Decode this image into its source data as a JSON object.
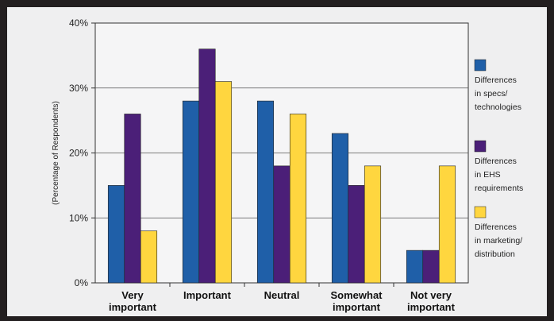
{
  "chart_data": {
    "type": "bar",
    "categories": [
      [
        "Very",
        "important"
      ],
      [
        "Important"
      ],
      [
        "Neutral"
      ],
      [
        "Somewhat",
        "important"
      ],
      [
        "Not very",
        "important"
      ]
    ],
    "series": [
      {
        "name": [
          "Differences",
          "in specs/",
          "technologies"
        ],
        "color": "#1f5fa8",
        "values": [
          15,
          28,
          28,
          23,
          5
        ]
      },
      {
        "name": [
          "Differences",
          "in EHS",
          "requirements"
        ],
        "color": "#4b1f78",
        "values": [
          26,
          36,
          18,
          15,
          5
        ]
      },
      {
        "name": [
          "Differences",
          "in marketing/",
          "distribution"
        ],
        "color": "#ffd63f",
        "values": [
          8,
          31,
          26,
          18,
          18
        ]
      }
    ],
    "ylabel": "(Percentage of Respondents)",
    "ylim": [
      0,
      40
    ],
    "yticks": [
      0,
      10,
      20,
      30,
      40
    ],
    "ytick_labels": [
      "0%",
      "10%",
      "20%",
      "30%",
      "40%"
    ],
    "grid": true,
    "legend": "right"
  }
}
